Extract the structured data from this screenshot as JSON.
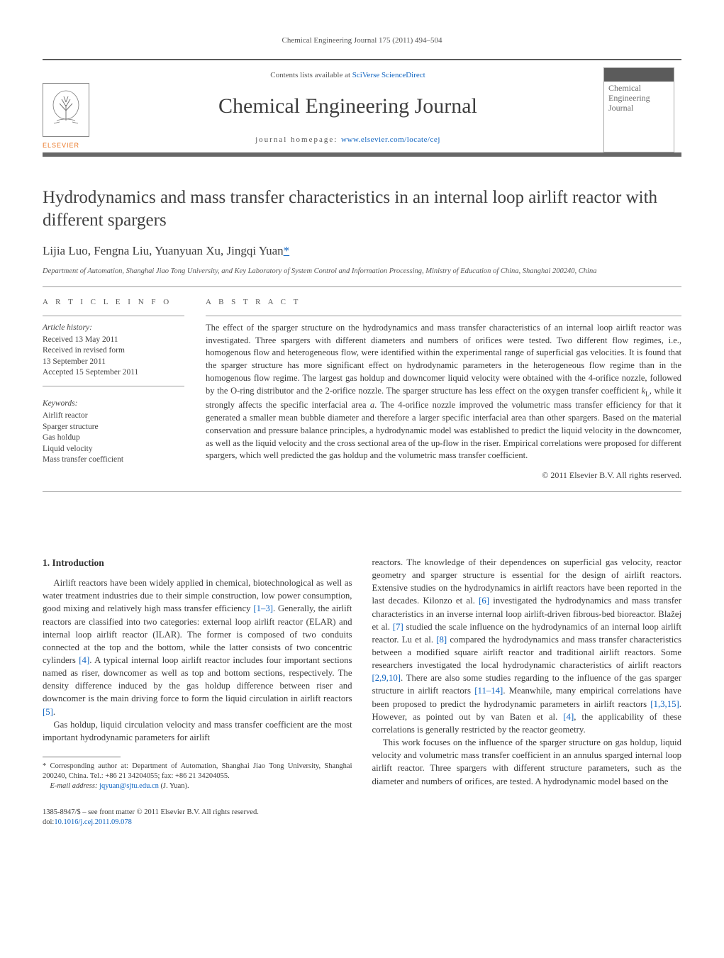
{
  "running_head": "Chemical Engineering Journal 175 (2011) 494–504",
  "masthead": {
    "contents_prefix": "Contents lists available at ",
    "contents_link": "SciVerse ScienceDirect",
    "journal_name": "Chemical Engineering Journal",
    "homepage_prefix": "journal homepage: ",
    "homepage_link": "www.elsevier.com/locate/cej",
    "publisher_word": "ELSEVIER",
    "cover_text": "Chemical Engineering Journal"
  },
  "title": "Hydrodynamics and mass transfer characteristics in an internal loop airlift reactor with different spargers",
  "authors_plain": "Lijia Luo, Fengna Liu, Yuanyuan Xu, Jingqi Yuan",
  "corr_marker": "*",
  "affiliation": "Department of Automation, Shanghai Jiao Tong University, and Key Laboratory of System Control and Information Processing, Ministry of Education of China, Shanghai 200240, China",
  "labels": {
    "article_info": "A R T I C L E   I N F O",
    "abstract": "A B S T R A C T"
  },
  "history": {
    "head": "Article history:",
    "lines": [
      "Received 13 May 2011",
      "Received in revised form",
      "13 September 2011",
      "Accepted 15 September 2011"
    ]
  },
  "keywords": {
    "head": "Keywords:",
    "items": [
      "Airlift reactor",
      "Sparger structure",
      "Gas holdup",
      "Liquid velocity",
      "Mass transfer coefficient"
    ]
  },
  "abstract": "The effect of the sparger structure on the hydrodynamics and mass transfer characteristics of an internal loop airlift reactor was investigated. Three spargers with different diameters and numbers of orifices were tested. Two different flow regimes, i.e., homogenous flow and heterogeneous flow, were identified within the experimental range of superficial gas velocities. It is found that the sparger structure has more significant effect on hydrodynamic parameters in the heterogeneous flow regime than in the homogenous flow regime. The largest gas holdup and downcomer liquid velocity were obtained with the 4-orifice nozzle, followed by the O-ring distributor and the 2-orifice nozzle. The sparger structure has less effect on the oxygen transfer coefficient kL, while it strongly affects the specific interfacial area a. The 4-orifice nozzle improved the volumetric mass transfer efficiency for that it generated a smaller mean bubble diameter and therefore a larger specific interfacial area than other spargers. Based on the material conservation and pressure balance principles, a hydrodynamic model was established to predict the liquid velocity in the downcomer, as well as the liquid velocity and the cross sectional area of the up-flow in the riser. Empirical correlations were proposed for different spargers, which well predicted the gas holdup and the volumetric mass transfer coefficient.",
  "copyright": "© 2011 Elsevier B.V. All rights reserved.",
  "intro_heading": "1.  Introduction",
  "intro_para1_a": "Airlift reactors have been widely applied in chemical, biotechnological as well as water treatment industries due to their simple construction, low power consumption, good mixing and relatively high mass transfer efficiency ",
  "intro_ref1": "[1–3]",
  "intro_para1_b": ". Generally, the airlift reactors are classified into two categories: external loop airlift reactor (ELAR) and internal loop airlift reactor (ILAR). The former is composed of two conduits connected at the top and the bottom, while the latter consists of two concentric cylinders ",
  "intro_ref2": "[4]",
  "intro_para1_c": ". A typical internal loop airlift reactor includes four important sections named as riser, downcomer as well as top and bottom sections, respectively. The density difference induced by the gas holdup difference between riser and downcomer is the main driving force to form the liquid circulation in airlift reactors ",
  "intro_ref3": "[5]",
  "intro_para1_d": ".",
  "intro_para2": "Gas holdup, liquid circulation velocity and mass transfer coefficient are the most important hydrodynamic parameters for airlift",
  "col2_para1_a": "reactors. The knowledge of their dependences on superficial gas velocity, reactor geometry and sparger structure is essential for the design of airlift reactors. Extensive studies on the hydrodynamics in airlift reactors have been reported in the last decades. Kilonzo et al. ",
  "col2_ref1": "[6]",
  "col2_para1_b": " investigated the hydrodynamics and mass transfer characteristics in an inverse internal loop airlift-driven fibrous-bed bioreactor. Blažej et al. ",
  "col2_ref2": "[7]",
  "col2_para1_c": " studied the scale influence on the hydrodynamics of an internal loop airlift reactor. Lu et al. ",
  "col2_ref3": "[8]",
  "col2_para1_d": " compared the hydrodynamics and mass transfer characteristics between a modified square airlift reactor and traditional airlift reactors. Some researchers investigated the local hydrodynamic characteristics of airlift reactors ",
  "col2_ref4": "[2,9,10]",
  "col2_para1_e": ". There are also some studies regarding to the influence of the gas sparger structure in airlift reactors ",
  "col2_ref5": "[11–14]",
  "col2_para1_f": ". Meanwhile, many empirical correlations have been proposed to predict the hydrodynamic parameters in airlift reactors ",
  "col2_ref6": "[1,3,15]",
  "col2_para1_g": ". However, as pointed out by van Baten et al. ",
  "col2_ref7": "[4]",
  "col2_para1_h": ", the applicability of these correlations is generally restricted by the reactor geometry.",
  "col2_para2": "This work focuses on the influence of the sparger structure on gas holdup, liquid velocity and volumetric mass transfer coefficient in an annulus sparged internal loop airlift reactor. Three spargers with different structure parameters, such as the diameter and numbers of orifices, are tested. A hydrodynamic model based on the",
  "footnote": {
    "marker": "*",
    "text_a": " Corresponding author at: Department of Automation, Shanghai Jiao Tong University, Shanghai 200240, China. Tel.: +86 21 34204055; fax: +86 21 34204055.",
    "email_label": "E-mail address: ",
    "email": "jqyuan@sjtu.edu.cn",
    "email_tail": " (J. Yuan)."
  },
  "footer": {
    "line1": "1385-8947/$ – see front matter © 2011 Elsevier B.V. All rights reserved.",
    "doi_label": "doi:",
    "doi": "10.1016/j.cej.2011.09.078"
  },
  "colors": {
    "link": "#1064c0",
    "text": "#3a3a3a",
    "rule": "#9c9c9c",
    "thickrule": "#676767",
    "publisher": "#e9711c"
  }
}
